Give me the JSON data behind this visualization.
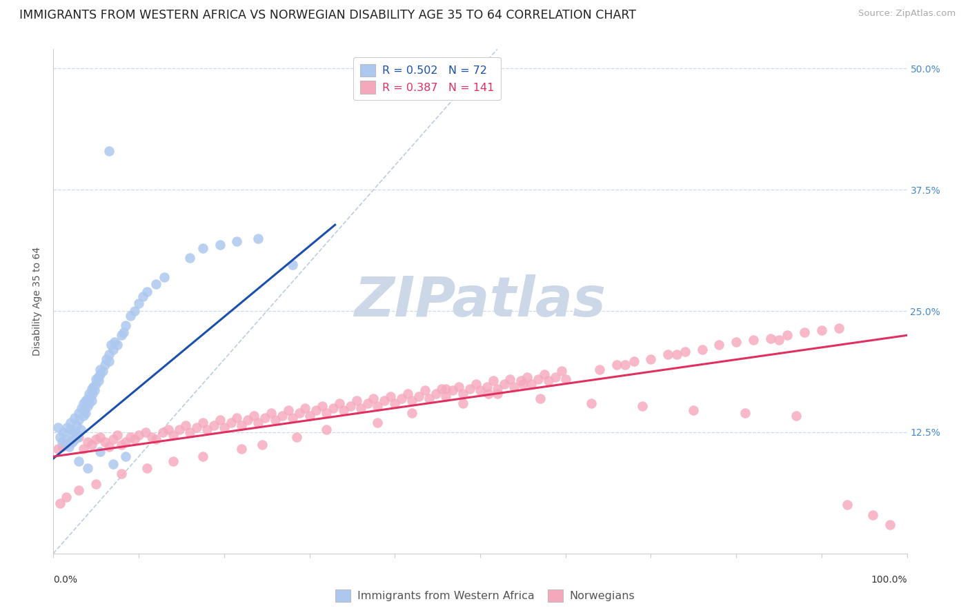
{
  "title": "IMMIGRANTS FROM WESTERN AFRICA VS NORWEGIAN DISABILITY AGE 35 TO 64 CORRELATION CHART",
  "source": "Source: ZipAtlas.com",
  "ylabel": "Disability Age 35 to 64",
  "series1_label": "Immigrants from Western Africa",
  "series2_label": "Norwegians",
  "series1_R": "0.502",
  "series1_N": "72",
  "series2_R": "0.387",
  "series2_N": "141",
  "series1_color": "#adc8ef",
  "series2_color": "#f5a8bc",
  "series1_line_color": "#1a4faa",
  "series2_line_color": "#e03060",
  "diag_color": "#b0c4d4",
  "grid_color": "#d0dae4",
  "background_color": "#ffffff",
  "watermark_text": "ZIPatlas",
  "watermark_color": "#ccd8e8",
  "title_fontsize": 12.5,
  "source_fontsize": 9.5,
  "legend_fontsize": 11.5,
  "axis_label_fontsize": 10,
  "tick_fontsize": 10,
  "ytick_color": "#4488cc",
  "xtick_color": "#333333",
  "seed": 42,
  "xmin": 0.0,
  "xmax": 1.0,
  "ymin": 0.0,
  "ymax": 0.52,
  "blue_x_values": [
    0.005,
    0.008,
    0.01,
    0.012,
    0.015,
    0.016,
    0.018,
    0.02,
    0.02,
    0.022,
    0.023,
    0.025,
    0.025,
    0.026,
    0.027,
    0.028,
    0.03,
    0.03,
    0.032,
    0.033,
    0.035,
    0.035,
    0.036,
    0.038,
    0.038,
    0.04,
    0.04,
    0.042,
    0.042,
    0.043,
    0.045,
    0.045,
    0.046,
    0.047,
    0.048,
    0.05,
    0.05,
    0.052,
    0.053,
    0.055,
    0.055,
    0.058,
    0.06,
    0.062,
    0.065,
    0.065,
    0.068,
    0.07,
    0.072,
    0.075,
    0.08,
    0.082,
    0.085,
    0.09,
    0.095,
    0.1,
    0.105,
    0.11,
    0.12,
    0.13,
    0.16,
    0.175,
    0.195,
    0.215,
    0.24,
    0.065,
    0.28,
    0.03,
    0.04,
    0.055,
    0.07,
    0.085
  ],
  "blue_y_values": [
    0.13,
    0.12,
    0.115,
    0.125,
    0.118,
    0.13,
    0.11,
    0.135,
    0.128,
    0.115,
    0.122,
    0.14,
    0.118,
    0.126,
    0.132,
    0.12,
    0.145,
    0.138,
    0.128,
    0.15,
    0.155,
    0.142,
    0.148,
    0.158,
    0.145,
    0.16,
    0.152,
    0.165,
    0.155,
    0.162,
    0.17,
    0.158,
    0.165,
    0.172,
    0.168,
    0.175,
    0.18,
    0.182,
    0.178,
    0.185,
    0.19,
    0.188,
    0.195,
    0.2,
    0.205,
    0.198,
    0.215,
    0.21,
    0.218,
    0.215,
    0.225,
    0.228,
    0.235,
    0.245,
    0.25,
    0.258,
    0.265,
    0.27,
    0.278,
    0.285,
    0.305,
    0.315,
    0.318,
    0.322,
    0.325,
    0.415,
    0.298,
    0.095,
    0.088,
    0.105,
    0.092,
    0.1
  ],
  "pink_x_values": [
    0.005,
    0.01,
    0.015,
    0.02,
    0.025,
    0.03,
    0.035,
    0.04,
    0.045,
    0.05,
    0.055,
    0.06,
    0.065,
    0.07,
    0.075,
    0.08,
    0.085,
    0.09,
    0.095,
    0.1,
    0.108,
    0.115,
    0.12,
    0.128,
    0.135,
    0.14,
    0.148,
    0.155,
    0.16,
    0.168,
    0.175,
    0.18,
    0.188,
    0.195,
    0.2,
    0.208,
    0.215,
    0.22,
    0.228,
    0.235,
    0.24,
    0.248,
    0.255,
    0.26,
    0.268,
    0.275,
    0.28,
    0.288,
    0.295,
    0.3,
    0.308,
    0.315,
    0.32,
    0.328,
    0.335,
    0.34,
    0.348,
    0.355,
    0.36,
    0.368,
    0.375,
    0.38,
    0.388,
    0.395,
    0.4,
    0.408,
    0.415,
    0.42,
    0.428,
    0.435,
    0.44,
    0.448,
    0.455,
    0.46,
    0.468,
    0.475,
    0.48,
    0.488,
    0.495,
    0.5,
    0.508,
    0.515,
    0.52,
    0.528,
    0.535,
    0.54,
    0.548,
    0.555,
    0.56,
    0.568,
    0.575,
    0.58,
    0.588,
    0.595,
    0.6,
    0.64,
    0.66,
    0.68,
    0.7,
    0.72,
    0.74,
    0.76,
    0.78,
    0.8,
    0.82,
    0.84,
    0.86,
    0.88,
    0.9,
    0.92,
    0.85,
    0.73,
    0.67,
    0.55,
    0.52,
    0.48,
    0.42,
    0.38,
    0.32,
    0.285,
    0.245,
    0.22,
    0.175,
    0.14,
    0.11,
    0.08,
    0.05,
    0.03,
    0.015,
    0.008,
    0.46,
    0.51,
    0.57,
    0.63,
    0.69,
    0.75,
    0.81,
    0.87,
    0.93,
    0.96,
    0.98
  ],
  "pink_y_values": [
    0.108,
    0.11,
    0.112,
    0.115,
    0.118,
    0.12,
    0.108,
    0.115,
    0.112,
    0.118,
    0.12,
    0.115,
    0.11,
    0.118,
    0.122,
    0.112,
    0.115,
    0.12,
    0.118,
    0.122,
    0.125,
    0.12,
    0.118,
    0.125,
    0.128,
    0.122,
    0.128,
    0.132,
    0.125,
    0.13,
    0.135,
    0.128,
    0.132,
    0.138,
    0.13,
    0.135,
    0.14,
    0.132,
    0.138,
    0.142,
    0.135,
    0.14,
    0.145,
    0.138,
    0.142,
    0.148,
    0.14,
    0.145,
    0.15,
    0.142,
    0.148,
    0.152,
    0.145,
    0.15,
    0.155,
    0.148,
    0.152,
    0.158,
    0.15,
    0.155,
    0.16,
    0.152,
    0.158,
    0.162,
    0.155,
    0.16,
    0.165,
    0.158,
    0.162,
    0.168,
    0.16,
    0.165,
    0.17,
    0.162,
    0.168,
    0.172,
    0.165,
    0.17,
    0.175,
    0.168,
    0.172,
    0.178,
    0.17,
    0.175,
    0.18,
    0.172,
    0.178,
    0.182,
    0.175,
    0.18,
    0.185,
    0.178,
    0.182,
    0.188,
    0.18,
    0.19,
    0.195,
    0.198,
    0.2,
    0.205,
    0.208,
    0.21,
    0.215,
    0.218,
    0.22,
    0.222,
    0.225,
    0.228,
    0.23,
    0.232,
    0.22,
    0.205,
    0.195,
    0.175,
    0.165,
    0.155,
    0.145,
    0.135,
    0.128,
    0.12,
    0.112,
    0.108,
    0.1,
    0.095,
    0.088,
    0.082,
    0.072,
    0.065,
    0.058,
    0.052,
    0.17,
    0.165,
    0.16,
    0.155,
    0.152,
    0.148,
    0.145,
    0.142,
    0.05,
    0.04,
    0.03
  ]
}
